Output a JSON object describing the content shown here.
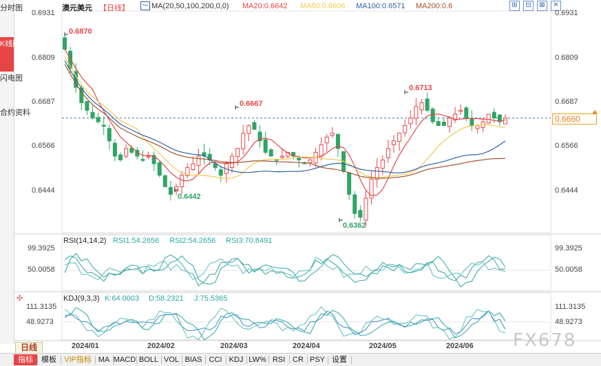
{
  "sidebar": {
    "items": [
      {
        "label": "分时图",
        "active": false
      },
      {
        "label": "K线图",
        "active": true
      },
      {
        "label": "闪电图",
        "active": false
      },
      {
        "label": "合约资料",
        "active": false
      }
    ]
  },
  "header": {
    "symbol": "澳元美元",
    "period_tag": "【日线】",
    "ma_label": "MA(20,50,100,200,0,0)",
    "ma20": "MA20:0.6642",
    "ma50": "MA50:0.6606",
    "ma100": "MA100:0.6571",
    "ma200": "MA200:0.6",
    "window_buttons": [
      "⊞",
      "⊟",
      "⊠",
      "✕"
    ]
  },
  "colors": {
    "up": "#e64545",
    "down": "#2fa565",
    "ma20": "#e64545",
    "ma50": "#f2c94c",
    "ma100": "#2f5fa7",
    "ma200": "#a0522d",
    "rsi": "#2aa6a6",
    "kdj_k": "#2aa6a6",
    "current": "#e67e22"
  },
  "price_panel": {
    "y_ticks": [
      "0.6931",
      "0.6809",
      "0.6687",
      "0.6566",
      "0.6444"
    ],
    "current_price": "0.6660",
    "annotations": [
      {
        "label": "0.6870",
        "kind": "high"
      },
      {
        "label": "0.6442",
        "kind": "low"
      },
      {
        "label": "0.6667",
        "kind": "high"
      },
      {
        "label": "0.6362",
        "kind": "low"
      },
      {
        "label": "0.6713",
        "kind": "high"
      }
    ]
  },
  "rsi_panel": {
    "title": "RSI(14,14,2)",
    "rsi1": "RSI1:54.2656",
    "rsi2": "RSI2:54.2656",
    "rsi3": "RSI3:70.8491",
    "y_ticks": [
      "99.3925",
      "50.0058"
    ]
  },
  "kdj_panel": {
    "title": "KDJ(9,3,3)",
    "k": "K:64.0003",
    "d": "D:58.2321",
    "j": "J:75.5365",
    "y_ticks": [
      "111.3135",
      "48.9273"
    ]
  },
  "x_axis": {
    "labels": [
      "2024/01",
      "2024/02",
      "2024/03",
      "2024/04",
      "2024/05",
      "2024/06"
    ]
  },
  "period_button": "日线",
  "bottom_tabs": [
    "指标",
    "模板",
    "VIP指标",
    "MA",
    "MACD",
    "BOLL",
    "VOL",
    "BIAS",
    "CCI",
    "KDJ",
    "LW%",
    "RSI",
    "CR",
    "PSY",
    "设置"
  ],
  "watermark": "FX678",
  "chart_data": {
    "type": "candlestick",
    "title": "澳元美元【日线】",
    "xlabel": "",
    "ylabel": "",
    "x_labels": [
      "2024/01",
      "2024/02",
      "2024/03",
      "2024/04",
      "2024/05",
      "2024/06"
    ],
    "ylim": [
      0.636,
      0.694
    ],
    "key_points": [
      {
        "label": "0.6870",
        "date": "2024/01",
        "value": 0.687
      },
      {
        "label": "0.6442",
        "date": "2024/02",
        "value": 0.6442
      },
      {
        "label": "0.6667",
        "date": "2024/03",
        "value": 0.6667
      },
      {
        "label": "0.6362",
        "date": "2024/04",
        "value": 0.6362
      },
      {
        "label": "0.6713",
        "date": "2024/05",
        "value": 0.6713
      }
    ],
    "close_path": [
      0.684,
      0.679,
      0.674,
      0.67,
      0.668,
      0.666,
      0.665,
      0.664,
      0.66,
      0.656,
      0.655,
      0.658,
      0.657,
      0.656,
      0.655,
      0.656,
      0.654,
      0.651,
      0.648,
      0.646,
      0.648,
      0.651,
      0.653,
      0.654,
      0.656,
      0.656,
      0.655,
      0.653,
      0.651,
      0.654,
      0.656,
      0.658,
      0.662,
      0.664,
      0.663,
      0.66,
      0.657,
      0.656,
      0.655,
      0.656,
      0.657,
      0.656,
      0.655,
      0.654,
      0.655,
      0.657,
      0.659,
      0.661,
      0.662,
      0.658,
      0.652,
      0.646,
      0.641,
      0.64,
      0.645,
      0.65,
      0.653,
      0.655,
      0.658,
      0.66,
      0.662,
      0.664,
      0.666,
      0.669,
      0.67,
      0.668,
      0.665,
      0.664,
      0.664,
      0.666,
      0.667,
      0.668,
      0.666,
      0.664,
      0.664,
      0.665,
      0.667,
      0.666,
      0.665,
      0.666
    ],
    "series": [
      {
        "name": "MA20",
        "value_last": 0.6642
      },
      {
        "name": "MA50",
        "value_last": 0.6606
      },
      {
        "name": "MA100",
        "value_last": 0.6571
      },
      {
        "name": "MA200",
        "value_last": 0.6
      }
    ],
    "current_price": 0.666
  }
}
